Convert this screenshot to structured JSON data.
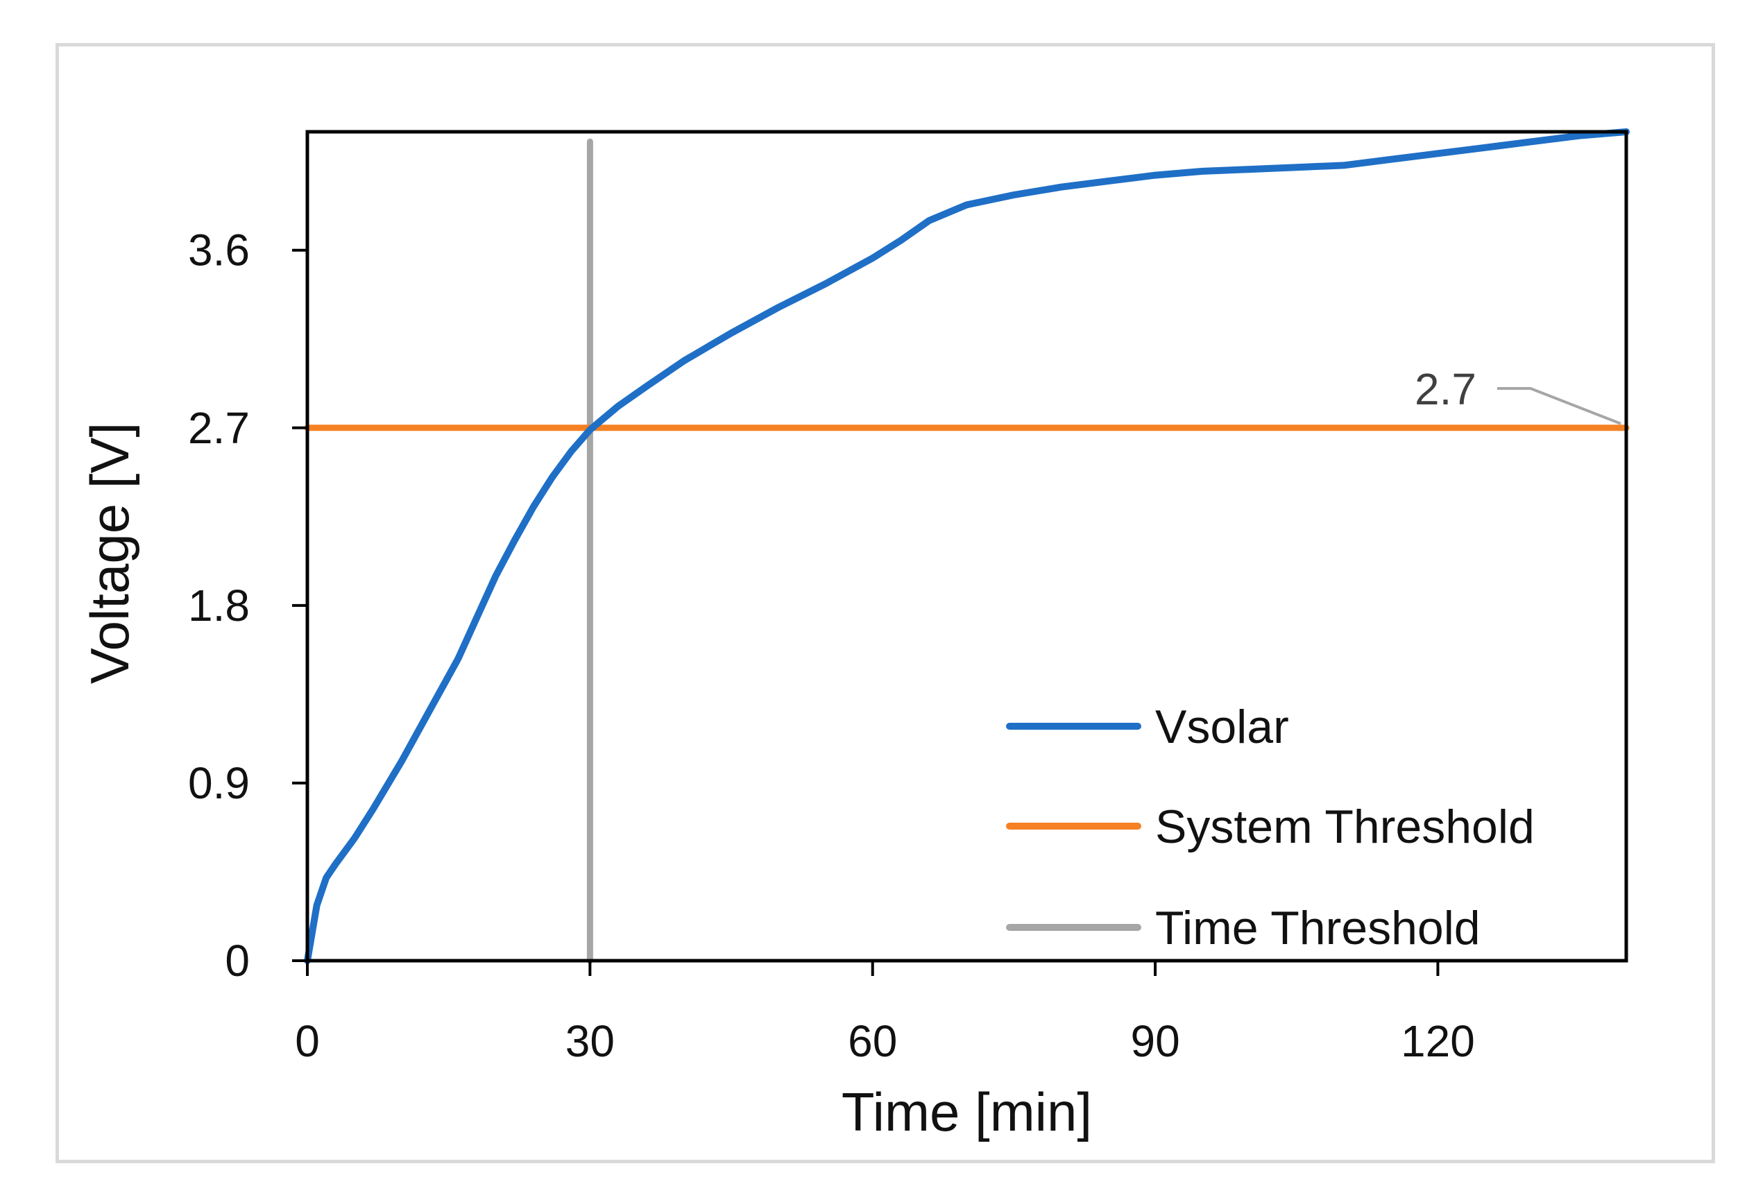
{
  "chart_data": {
    "type": "line",
    "title": "",
    "xlabel": "Time [min]",
    "ylabel": "Voltage [V]",
    "xlim": [
      0,
      140
    ],
    "ylim": [
      0,
      4.2
    ],
    "xticks": [
      "0",
      "30",
      "60",
      "90",
      "120"
    ],
    "xtick_values": [
      0,
      30,
      60,
      90,
      120
    ],
    "yticks": [
      "0",
      "0.9",
      "1.8",
      "2.7",
      "3.6"
    ],
    "ytick_values": [
      0,
      0.9,
      1.8,
      2.7,
      3.6
    ],
    "grid": false,
    "legend_position": "bottom-right",
    "series": [
      {
        "name": "Vsolar",
        "color": "#1f6fc6",
        "x": [
          0,
          1,
          2,
          3,
          5,
          7,
          10,
          13,
          16,
          18,
          20,
          22,
          24,
          26,
          28,
          30,
          33,
          36,
          40,
          45,
          50,
          55,
          60,
          63,
          66,
          70,
          75,
          80,
          85,
          90,
          95,
          100,
          105,
          110,
          115,
          120,
          125,
          130,
          135,
          140
        ],
        "y": [
          0,
          0.28,
          0.42,
          0.49,
          0.62,
          0.77,
          1.01,
          1.27,
          1.53,
          1.74,
          1.95,
          2.13,
          2.3,
          2.45,
          2.58,
          2.69,
          2.81,
          2.91,
          3.04,
          3.18,
          3.31,
          3.43,
          3.56,
          3.65,
          3.75,
          3.83,
          3.88,
          3.92,
          3.95,
          3.98,
          4.0,
          4.01,
          4.02,
          4.03,
          4.06,
          4.09,
          4.12,
          4.15,
          4.18,
          4.2
        ]
      },
      {
        "name": "System Threshold",
        "color": "#f58124",
        "x": [
          0,
          140
        ],
        "y": [
          2.7,
          2.7
        ]
      },
      {
        "name": "Time Threshold",
        "color": "#a6a6a6",
        "x": [
          30,
          30
        ],
        "y": [
          0,
          4.15
        ]
      }
    ],
    "annotations": [
      {
        "text": "2.7",
        "x": 140,
        "y": 2.7,
        "color": "#a6a6a6"
      }
    ]
  }
}
